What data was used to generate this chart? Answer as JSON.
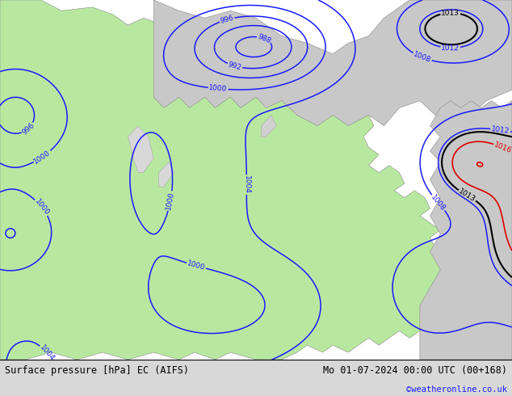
{
  "title_left": "Surface pressure [hPa] EC (AIFS)",
  "title_right": "Mo 01-07-2024 00:00 UTC (00+168)",
  "watermark": "©weatheronline.co.uk",
  "bg_land_color": "#b8e8a0",
  "bg_sea_color": "#c8c8c8",
  "contour_color_blue": "#1a1aff",
  "contour_color_black": "#000000",
  "contour_color_red": "#dd0000",
  "bottom_bar_color": "#d8d8d8",
  "figure_width": 6.34,
  "figure_height": 4.9,
  "dpi": 100
}
